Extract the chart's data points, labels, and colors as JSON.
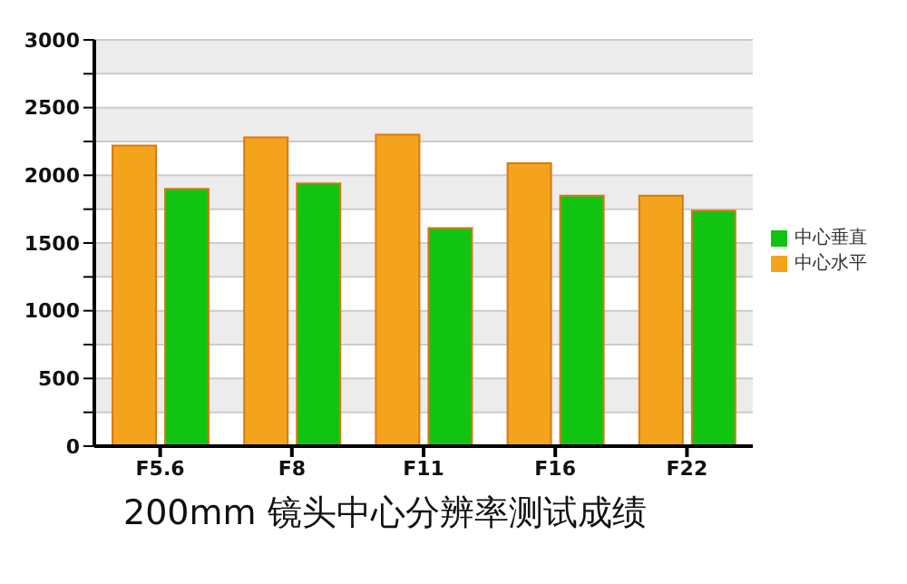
{
  "chart_data": {
    "type": "bar",
    "title": "200mm 镜头中心分辨率测试成绩",
    "categories": [
      "F5.6",
      "F8",
      "F11",
      "F16",
      "F22"
    ],
    "series": [
      {
        "name": "中心水平",
        "color": "#f4a41c",
        "values": [
          2220,
          2280,
          2300,
          2090,
          1850
        ]
      },
      {
        "name": "中心垂直",
        "color": "#12c412",
        "values": [
          1900,
          1940,
          1610,
          1850,
          1740
        ]
      }
    ],
    "ylim": [
      0,
      3000
    ],
    "yticks": [
      0,
      {
        "value": 250,
        "label": null
      },
      500,
      {
        "value": 750,
        "label": null
      },
      1000,
      {
        "value": 1250,
        "label": null
      },
      1500,
      {
        "value": 1750,
        "label": null
      },
      2000,
      {
        "value": 2250,
        "label": null
      },
      2500,
      {
        "value": 2750,
        "label": null
      },
      3000
    ],
    "grid": "y",
    "legend": "right"
  }
}
